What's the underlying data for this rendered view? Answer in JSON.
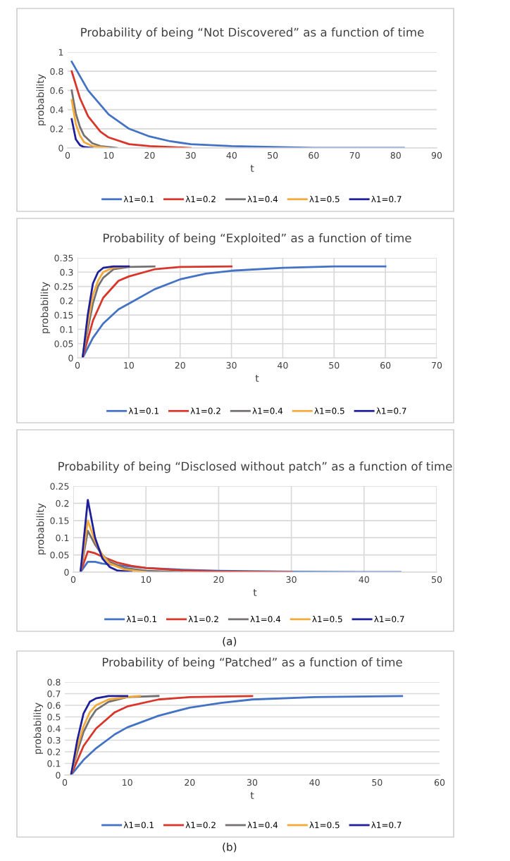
{
  "chart_data": [
    {
      "type": "line",
      "title": "Probability of being “Not Discovered” as a function of time",
      "xlabel": "t",
      "ylabel": "probability",
      "xlim": [
        0,
        90
      ],
      "xticks": [
        0,
        10,
        20,
        30,
        40,
        50,
        60,
        70,
        80,
        90
      ],
      "ylim": [
        0,
        1
      ],
      "yticks": [
        0,
        0.2,
        0.4,
        0.6,
        0.8,
        1
      ],
      "grid": "y",
      "legend": "bottom",
      "marker": "none",
      "line_style": "solid",
      "series": [
        {
          "name": "λ1=0.1",
          "color": "#4472c4",
          "x": [
            1,
            5,
            10,
            15,
            20,
            25,
            30,
            40,
            50,
            60,
            82
          ],
          "values": [
            0.9,
            0.6,
            0.35,
            0.2,
            0.12,
            0.07,
            0.04,
            0.02,
            0.01,
            0,
            0
          ]
        },
        {
          "name": "λ1=0.2",
          "color": "#d9362b",
          "x": [
            1,
            3,
            5,
            8,
            10,
            15,
            20,
            30
          ],
          "values": [
            0.8,
            0.52,
            0.33,
            0.17,
            0.11,
            0.04,
            0.02,
            0
          ]
        },
        {
          "name": "λ1=0.4",
          "color": "#767171",
          "x": [
            1,
            2,
            3,
            4,
            6,
            8,
            12
          ],
          "values": [
            0.6,
            0.36,
            0.22,
            0.13,
            0.05,
            0.02,
            0
          ]
        },
        {
          "name": "λ1=0.5",
          "color": "#f4a93b",
          "x": [
            1,
            2,
            3,
            4,
            6,
            10
          ],
          "values": [
            0.5,
            0.25,
            0.13,
            0.06,
            0.02,
            0
          ]
        },
        {
          "name": "λ1=0.7",
          "color": "#1f1f9a",
          "x": [
            1,
            2,
            3,
            4,
            6
          ],
          "values": [
            0.3,
            0.09,
            0.03,
            0.01,
            0
          ]
        }
      ]
    },
    {
      "type": "line",
      "title": "Probability of being “Exploited” as a function of time",
      "xlabel": "t",
      "ylabel": "probability",
      "xlim": [
        0,
        70
      ],
      "xticks": [
        0,
        10,
        20,
        30,
        40,
        50,
        60,
        70
      ],
      "ylim": [
        0,
        0.35
      ],
      "yticks": [
        0,
        0.05,
        0.1,
        0.15,
        0.2,
        0.25,
        0.3,
        0.35
      ],
      "grid": true,
      "legend": "bottom",
      "marker": "none",
      "line_style": "solid",
      "series": [
        {
          "name": "λ1=0.1",
          "color": "#4472c4",
          "x": [
            1,
            3,
            5,
            8,
            10,
            15,
            20,
            25,
            30,
            40,
            50,
            60
          ],
          "values": [
            0,
            0.07,
            0.12,
            0.17,
            0.19,
            0.24,
            0.275,
            0.295,
            0.305,
            0.315,
            0.32,
            0.32
          ]
        },
        {
          "name": "λ1=0.2",
          "color": "#d9362b",
          "x": [
            1,
            3,
            5,
            8,
            10,
            15,
            20,
            30
          ],
          "values": [
            0,
            0.13,
            0.21,
            0.27,
            0.285,
            0.31,
            0.318,
            0.32
          ]
        },
        {
          "name": "λ1=0.4",
          "color": "#767171",
          "x": [
            1,
            2,
            3,
            4,
            5,
            7,
            10,
            15
          ],
          "values": [
            0,
            0.1,
            0.19,
            0.25,
            0.28,
            0.31,
            0.318,
            0.32
          ]
        },
        {
          "name": "λ1=0.5",
          "color": "#f4a93b",
          "x": [
            1,
            2,
            3,
            4,
            5,
            7,
            10
          ],
          "values": [
            0,
            0.12,
            0.22,
            0.27,
            0.3,
            0.316,
            0.32
          ]
        },
        {
          "name": "λ1=0.7",
          "color": "#1f1f9a",
          "x": [
            1,
            2,
            3,
            4,
            5,
            7,
            10
          ],
          "values": [
            0,
            0.15,
            0.26,
            0.3,
            0.315,
            0.32,
            0.32
          ]
        }
      ]
    },
    {
      "type": "line",
      "title": "Probability of being “Disclosed without patch” as a function of time",
      "xlabel": "t",
      "ylabel": "probability",
      "xlim": [
        0,
        50
      ],
      "xticks": [
        0,
        10,
        20,
        30,
        40,
        50
      ],
      "ylim": [
        0,
        0.25
      ],
      "yticks": [
        0,
        0.05,
        0.1,
        0.15,
        0.2,
        0.25
      ],
      "grid": true,
      "legend": "bottom",
      "marker": "none",
      "line_style": "solid",
      "annotations": [
        "(a)"
      ],
      "series": [
        {
          "name": "λ1=0.1",
          "color": "#4472c4",
          "x": [
            1,
            2,
            3,
            4,
            6,
            10,
            15,
            20,
            30,
            45
          ],
          "values": [
            0,
            0.03,
            0.03,
            0.025,
            0.02,
            0.012,
            0.007,
            0.004,
            0.001,
            0
          ]
        },
        {
          "name": "λ1=0.2",
          "color": "#d9362b",
          "x": [
            1,
            2,
            3,
            4,
            6,
            8,
            10,
            15,
            20,
            30
          ],
          "values": [
            0,
            0.06,
            0.055,
            0.045,
            0.028,
            0.018,
            0.012,
            0.005,
            0.002,
            0
          ]
        },
        {
          "name": "λ1=0.4",
          "color": "#767171",
          "x": [
            1,
            2,
            3,
            4,
            5,
            7,
            10,
            15
          ],
          "values": [
            0,
            0.12,
            0.08,
            0.05,
            0.03,
            0.012,
            0.004,
            0
          ]
        },
        {
          "name": "λ1=0.5",
          "color": "#f4a93b",
          "x": [
            1,
            2,
            3,
            4,
            5,
            7,
            10
          ],
          "values": [
            0,
            0.15,
            0.09,
            0.05,
            0.025,
            0.008,
            0
          ]
        },
        {
          "name": "λ1=0.7",
          "color": "#1f1f9a",
          "x": [
            1,
            2,
            3,
            4,
            5,
            6,
            8
          ],
          "values": [
            0,
            0.21,
            0.1,
            0.04,
            0.015,
            0.005,
            0
          ]
        }
      ]
    },
    {
      "type": "line",
      "title": "Probability of being “Patched” as a function of time",
      "xlabel": "t",
      "ylabel": "probability",
      "xlim": [
        0,
        60
      ],
      "xticks": [
        0,
        10,
        20,
        30,
        40,
        50,
        60
      ],
      "ylim": [
        0,
        0.8
      ],
      "yticks": [
        0,
        0.1,
        0.2,
        0.3,
        0.4,
        0.5,
        0.6,
        0.7,
        0.8
      ],
      "grid": "y",
      "legend": "bottom",
      "marker": "none",
      "line_style": "solid",
      "annotations": [
        "(b)"
      ],
      "series": [
        {
          "name": "λ1=0.1",
          "color": "#4472c4",
          "x": [
            1,
            3,
            5,
            8,
            10,
            15,
            20,
            25,
            30,
            40,
            54
          ],
          "values": [
            0,
            0.13,
            0.23,
            0.35,
            0.41,
            0.51,
            0.58,
            0.62,
            0.65,
            0.67,
            0.68
          ]
        },
        {
          "name": "λ1=0.2",
          "color": "#d9362b",
          "x": [
            1,
            3,
            5,
            8,
            10,
            15,
            20,
            30
          ],
          "values": [
            0,
            0.25,
            0.4,
            0.54,
            0.59,
            0.65,
            0.67,
            0.68
          ]
        },
        {
          "name": "λ1=0.4",
          "color": "#767171",
          "x": [
            1,
            2,
            3,
            4,
            5,
            7,
            10,
            15
          ],
          "values": [
            0,
            0.2,
            0.37,
            0.48,
            0.56,
            0.63,
            0.67,
            0.68
          ]
        },
        {
          "name": "λ1=0.5",
          "color": "#f4a93b",
          "x": [
            1,
            2,
            3,
            4,
            5,
            7,
            10,
            12
          ],
          "values": [
            0,
            0.24,
            0.42,
            0.54,
            0.6,
            0.65,
            0.67,
            0.68
          ]
        },
        {
          "name": "λ1=0.7",
          "color": "#1f1f9a",
          "x": [
            1,
            2,
            3,
            4,
            5,
            7,
            10
          ],
          "values": [
            0,
            0.3,
            0.53,
            0.63,
            0.66,
            0.68,
            0.68
          ]
        }
      ]
    }
  ]
}
